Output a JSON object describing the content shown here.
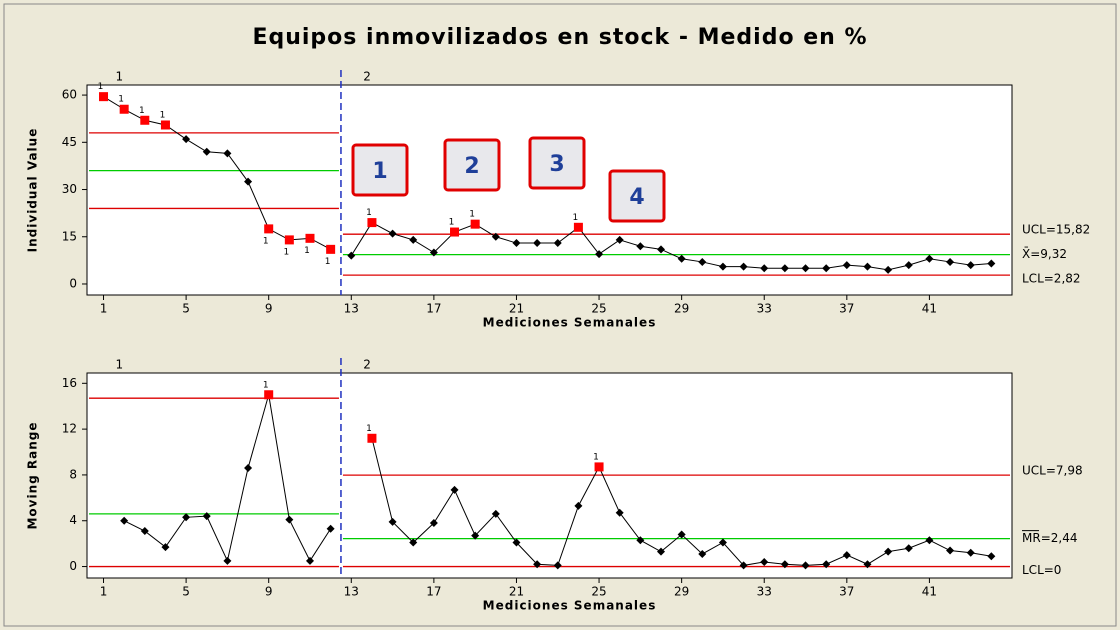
{
  "chart_data": [
    {
      "type": "line",
      "title": "Equipos inmovilizados en stock - Medido en %",
      "ylabel": "Individual Value",
      "xlabel": "Mediciones Semanales",
      "x": [
        1,
        2,
        3,
        4,
        5,
        6,
        7,
        8,
        9,
        10,
        11,
        12,
        13,
        14,
        15,
        16,
        17,
        18,
        19,
        20,
        21,
        22,
        23,
        24,
        25,
        26,
        27,
        28,
        29,
        30,
        31,
        32,
        33,
        34,
        35,
        36,
        37,
        38,
        39,
        40,
        41,
        42,
        43,
        44
      ],
      "series": [
        {
          "name": "Individual Value",
          "color": "#000000",
          "values": [
            59.5,
            55.5,
            52,
            50.5,
            46,
            42,
            41.5,
            32.5,
            17.5,
            14,
            14.5,
            11,
            9,
            19.5,
            16,
            14,
            10,
            16.5,
            19,
            15,
            13,
            13,
            13,
            18,
            9.5,
            14,
            12,
            11,
            8,
            7,
            5.5,
            5.5,
            5,
            5,
            5,
            5,
            6,
            5.5,
            4.5,
            6,
            8,
            7,
            6,
            6.5
          ]
        }
      ],
      "flagged": [
        1,
        2,
        3,
        4,
        9,
        10,
        11,
        12,
        14,
        18,
        19,
        24
      ],
      "flag_color": "#ff0000",
      "test_label": "1",
      "stages": [
        {
          "name": "1",
          "start": 1,
          "end": 12,
          "ucl": 48,
          "center": 36,
          "lcl": 24
        },
        {
          "name": "2",
          "start": 13,
          "end": 44,
          "ucl": 15.82,
          "center": 9.32,
          "lcl": 2.82,
          "labels": {
            "ucl": "UCL=15,82",
            "center": "X̄=9,32",
            "lcl": "LCL=2,82"
          }
        }
      ],
      "limit_color": "#dd0000",
      "center_color": "#00cc00",
      "annotations": [
        "1",
        "2",
        "3",
        "4"
      ],
      "xlim": [
        0.2,
        45
      ],
      "xticks": [
        1,
        5,
        9,
        13,
        17,
        21,
        25,
        29,
        33,
        37,
        41
      ],
      "ylim": [
        -3.5,
        63.2
      ],
      "yticks": [
        0,
        15,
        30,
        45,
        60
      ]
    },
    {
      "type": "line",
      "ylabel": "Moving Range",
      "xlabel": "Mediciones Semanales",
      "x": [
        1,
        2,
        3,
        4,
        5,
        6,
        7,
        8,
        9,
        10,
        11,
        12,
        13,
        14,
        15,
        16,
        17,
        18,
        19,
        20,
        21,
        22,
        23,
        24,
        25,
        26,
        27,
        28,
        29,
        30,
        31,
        32,
        33,
        34,
        35,
        36,
        37,
        38,
        39,
        40,
        41,
        42,
        43,
        44
      ],
      "series": [
        {
          "name": "Moving Range",
          "color": "#000000",
          "values": [
            null,
            4,
            3.1,
            1.7,
            4.3,
            4.4,
            0.5,
            8.6,
            15,
            4.1,
            0.5,
            3.3,
            null,
            11.2,
            3.9,
            2.1,
            3.8,
            6.7,
            2.7,
            4.6,
            2.1,
            0.2,
            0.1,
            5.3,
            8.7,
            4.7,
            2.3,
            1.3,
            2.8,
            1.1,
            2.1,
            0.1,
            0.4,
            0.2,
            0.1,
            0.2,
            1,
            0.2,
            1.3,
            1.6,
            2.3,
            1.4,
            1.2,
            0.9
          ]
        }
      ],
      "flagged": [
        9,
        14,
        25
      ],
      "flag_color": "#ff0000",
      "test_label": "1",
      "stages": [
        {
          "name": "1",
          "start": 1,
          "end": 12,
          "ucl": 14.7,
          "center": 4.6,
          "lcl": 0
        },
        {
          "name": "2",
          "start": 13,
          "end": 44,
          "ucl": 7.98,
          "center": 2.44,
          "lcl": 0,
          "labels": {
            "ucl": "UCL=7,98",
            "center": "MR=2,44",
            "lcl": "LCL=0"
          }
        }
      ],
      "limit_color": "#dd0000",
      "center_color": "#00cc00",
      "xlim": [
        0.2,
        45
      ],
      "xticks": [
        1,
        5,
        9,
        13,
        17,
        21,
        25,
        29,
        33,
        37,
        41
      ],
      "ylim": [
        -1,
        16.9
      ],
      "yticks": [
        0,
        4,
        8,
        12,
        16
      ]
    }
  ]
}
